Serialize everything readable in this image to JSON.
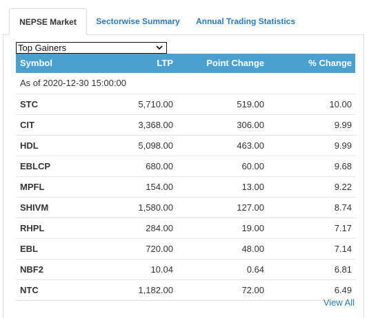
{
  "tabs": [
    {
      "label": "NEPSE Market",
      "active": true
    },
    {
      "label": "Sectorwise Summary",
      "active": false
    },
    {
      "label": "Annual Trading Statistics",
      "active": false
    }
  ],
  "filter": {
    "selected": "Top Gainers"
  },
  "table": {
    "columns": [
      "Symbol",
      "LTP",
      "Point Change",
      "% Change"
    ],
    "as_of": "As of 2020-12-30 15:00:00",
    "rows": [
      {
        "symbol": "STC",
        "ltp": "5,710.00",
        "point_change": "519.00",
        "pct_change": "10.00"
      },
      {
        "symbol": "CIT",
        "ltp": "3,368.00",
        "point_change": "306.00",
        "pct_change": "9.99"
      },
      {
        "symbol": "HDL",
        "ltp": "5,098.00",
        "point_change": "463.00",
        "pct_change": "9.99"
      },
      {
        "symbol": "EBLCP",
        "ltp": "680.00",
        "point_change": "60.00",
        "pct_change": "9.68"
      },
      {
        "symbol": "MPFL",
        "ltp": "154.00",
        "point_change": "13.00",
        "pct_change": "9.22"
      },
      {
        "symbol": "SHIVM",
        "ltp": "1,580.00",
        "point_change": "127.00",
        "pct_change": "8.74"
      },
      {
        "symbol": "RHPL",
        "ltp": "284.00",
        "point_change": "19.00",
        "pct_change": "7.17"
      },
      {
        "symbol": "EBL",
        "ltp": "720.00",
        "point_change": "48.00",
        "pct_change": "7.14"
      },
      {
        "symbol": "NBF2",
        "ltp": "10.04",
        "point_change": "0.64",
        "pct_change": "6.81"
      },
      {
        "symbol": "NTC",
        "ltp": "1,182.00",
        "point_change": "72.00",
        "pct_change": "6.49"
      }
    ]
  },
  "footer": {
    "view_all": "View All"
  },
  "colors": {
    "header_bg": "#4ba0d0",
    "link": "#2a7ab8",
    "row_border": "#e4e4e4"
  }
}
